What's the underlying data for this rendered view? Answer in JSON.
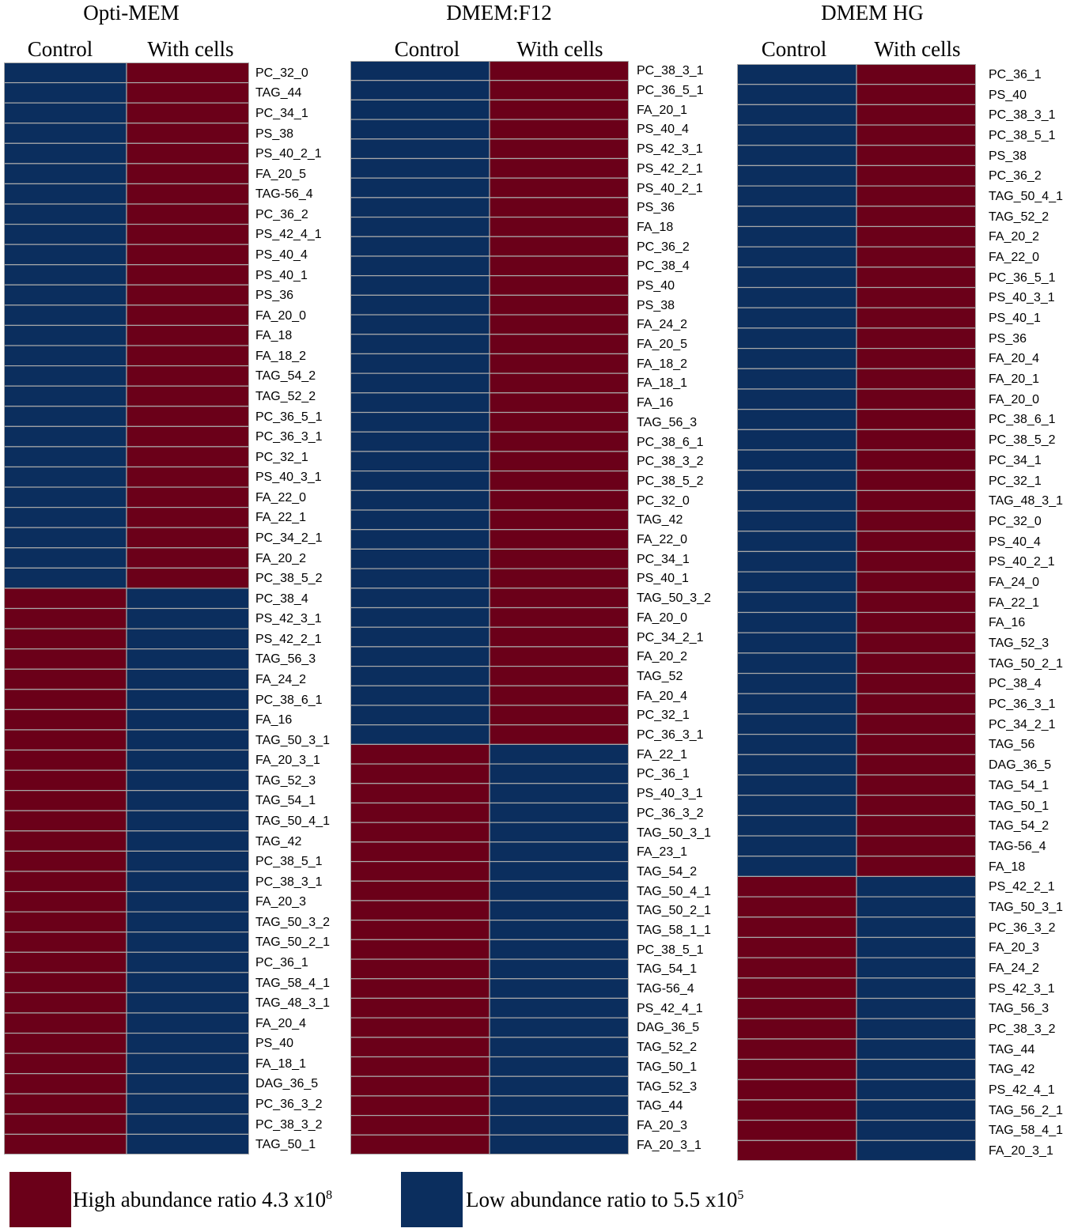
{
  "colors": {
    "high": "#6b0019",
    "low": "#0b2e5e",
    "gridline": "#a9a9a9"
  },
  "chart_data": [
    {
      "type": "heatmap",
      "title": "Opti-MEM",
      "columns": [
        "Control",
        "With cells"
      ],
      "rows": [
        "PC_32_0",
        "TAG_44",
        "PC_34_1",
        "PS_38",
        "PS_40_2_1",
        "FA_20_5",
        "TAG-56_4",
        "PC_36_2",
        "PS_42_4_1",
        "PS_40_4",
        "PS_40_1",
        "PS_36",
        "FA_20_0",
        "FA_18",
        "FA_18_2",
        "TAG_54_2",
        "TAG_52_2",
        "PC_36_5_1",
        "PC_36_3_1",
        "PC_32_1",
        "PS_40_3_1",
        "FA_22_0",
        "FA_22_1",
        "PC_34_2_1",
        "FA_20_2",
        "PC_38_5_2",
        "PC_38_4",
        "PS_42_3_1",
        "PS_42_2_1",
        "TAG_56_3",
        "FA_24_2",
        "PC_38_6_1",
        "FA_16",
        "TAG_50_3_1",
        "FA_20_3_1",
        "TAG_52_3",
        "TAG_54_1",
        "TAG_50_4_1",
        "TAG_42",
        "PC_38_5_1",
        "PC_38_3_1",
        "FA_20_3",
        "TAG_50_3_2",
        "TAG_50_2_1",
        "PC_36_1",
        "TAG_58_4_1",
        "TAG_48_3_1",
        "FA_20_4",
        "PS_40",
        "FA_18_1",
        "DAG_36_5",
        "PC_36_3_2",
        "PC_38_3_2",
        "TAG_50_1"
      ],
      "high_in_with_cells_count": 26
    },
    {
      "type": "heatmap",
      "title": "DMEM:F12",
      "columns": [
        "Control",
        "With cells"
      ],
      "rows": [
        "PC_38_3_1",
        "PC_36_5_1",
        "FA_20_1",
        "PS_40_4",
        "PS_42_3_1",
        "PS_42_2_1",
        "PS_40_2_1",
        "PS_36",
        "FA_18",
        "PC_36_2",
        "PC_38_4",
        "PS_40",
        "PS_38",
        "FA_24_2",
        "FA_20_5",
        "FA_18_2",
        "FA_18_1",
        "FA_16",
        "TAG_56_3",
        "PC_38_6_1",
        "PC_38_3_2",
        "PC_38_5_2",
        "PC_32_0",
        "TAG_42",
        "FA_22_0",
        "PC_34_1",
        "PS_40_1",
        "TAG_50_3_2",
        "FA_20_0",
        "PC_34_2_1",
        "FA_20_2",
        "TAG_52",
        "FA_20_4",
        "PC_32_1",
        "PC_36_3_1",
        "FA_22_1",
        "PC_36_1",
        "PS_40_3_1",
        "PC_36_3_2",
        "TAG_50_3_1",
        "FA_23_1",
        "TAG_54_2",
        "TAG_50_4_1",
        "TAG_50_2_1",
        "TAG_58_1_1",
        "PC_38_5_1",
        "TAG_54_1",
        "TAG-56_4",
        "PS_42_4_1",
        "DAG_36_5",
        "TAG_52_2",
        "TAG_50_1",
        "TAG_52_3",
        "TAG_44",
        "FA_20_3",
        "FA_20_3_1"
      ],
      "high_in_with_cells_count": 35
    },
    {
      "type": "heatmap",
      "title": "DMEM HG",
      "columns": [
        "Control",
        "With cells"
      ],
      "rows": [
        "PC_36_1",
        "PS_40",
        "PC_38_3_1",
        "PC_38_5_1",
        "PS_38",
        "PC_36_2",
        "TAG_50_4_1",
        "TAG_52_2",
        "FA_20_2",
        "FA_22_0",
        "PC_36_5_1",
        "PS_40_3_1",
        "PS_40_1",
        "PS_36",
        "FA_20_4",
        "FA_20_1",
        "FA_20_0",
        "PC_38_6_1",
        "PC_38_5_2",
        "PC_34_1",
        "PC_32_1",
        "TAG_48_3_1",
        "PC_32_0",
        "PS_40_4",
        "PS_40_2_1",
        "FA_24_0",
        "FA_22_1",
        "FA_16",
        "TAG_52_3",
        "TAG_50_2_1",
        "PC_38_4",
        "PC_36_3_1",
        "PC_34_2_1",
        "TAG_56",
        "DAG_36_5",
        "TAG_54_1",
        "TAG_50_1",
        "TAG_54_2",
        "TAG-56_4",
        "FA_18",
        "PS_42_2_1",
        "TAG_50_3_1",
        "PC_36_3_2",
        "FA_20_3",
        "FA_24_2",
        "PS_42_3_1",
        "TAG_56_3",
        "PC_38_3_2",
        "TAG_44",
        "TAG_42",
        "PS_42_4_1",
        "TAG_56_2_1",
        "TAG_58_4_1",
        "FA_20_3_1"
      ],
      "high_in_with_cells_count": 40
    }
  ],
  "legend": {
    "high_text": "High abundance ratio  4.3 x10",
    "high_exp": "8",
    "low_text": "Low abundance ratio to 5.5 x10",
    "low_exp": "5"
  }
}
